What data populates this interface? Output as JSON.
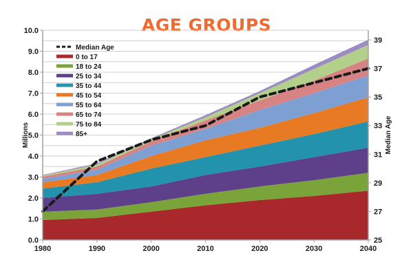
{
  "chart_data": {
    "type": "area",
    "title": "AGE GROUPS",
    "xlabel": "",
    "ylabel": "Millions",
    "y2label": "Median Age",
    "x": [
      1980,
      1990,
      2000,
      2010,
      2020,
      2030,
      2040
    ],
    "xticks": [
      "1980",
      "1990",
      "2000",
      "2010",
      "2020",
      "2030",
      "2040"
    ],
    "ylim": [
      0,
      10
    ],
    "yticks": [
      "0.0",
      "1.0",
      "2.0",
      "3.0",
      "4.0",
      "5.0",
      "6.0",
      "7.0",
      "8.0",
      "9.0",
      "10.0"
    ],
    "y2lim": [
      25,
      39
    ],
    "y2ticks": [
      "25",
      "27",
      "29",
      "31",
      "33",
      "35",
      "37",
      "39"
    ],
    "grid": true,
    "stacked": true,
    "legend_position": "top-left",
    "series": [
      {
        "name": "0 to 17",
        "color": "#a8282b",
        "values": [
          0.95,
          1.05,
          1.35,
          1.65,
          1.9,
          2.1,
          2.35
        ]
      },
      {
        "name": "18 to 24",
        "color": "#7aa33a",
        "values": [
          0.4,
          0.4,
          0.45,
          0.55,
          0.65,
          0.75,
          0.85
        ]
      },
      {
        "name": "25 to 34",
        "color": "#5e3f8a",
        "values": [
          0.65,
          0.75,
          0.75,
          0.9,
          0.95,
          1.1,
          1.2
        ]
      },
      {
        "name": "35 to 44",
        "color": "#2392ad",
        "values": [
          0.45,
          0.55,
          0.85,
          0.85,
          1.0,
          1.1,
          1.25
        ]
      },
      {
        "name": "45 to 54",
        "color": "#e87a24",
        "values": [
          0.3,
          0.35,
          0.6,
          0.8,
          0.85,
          1.0,
          1.15
        ]
      },
      {
        "name": "55 to 64",
        "color": "#7d9fd2",
        "values": [
          0.17,
          0.25,
          0.5,
          0.55,
          0.85,
          0.95,
          1.05
        ]
      },
      {
        "name": "65 to 74",
        "color": "#d88383",
        "values": [
          0.1,
          0.15,
          0.2,
          0.4,
          0.45,
          0.6,
          0.8
        ]
      },
      {
        "name": "75 to 84",
        "color": "#b3d08a",
        "values": [
          0.05,
          0.1,
          0.1,
          0.15,
          0.35,
          0.55,
          0.65
        ]
      },
      {
        "name": "85+",
        "color": "#9d8cc4",
        "values": [
          0.03,
          0.05,
          0.05,
          0.1,
          0.1,
          0.2,
          0.25
        ]
      }
    ],
    "line_series": {
      "name": "Median Age",
      "axis": "right",
      "color": "#1a1a1a",
      "style": "dashed",
      "values": [
        27.0,
        30.5,
        32.0,
        33.0,
        35.0,
        36.0,
        37.0
      ]
    }
  }
}
